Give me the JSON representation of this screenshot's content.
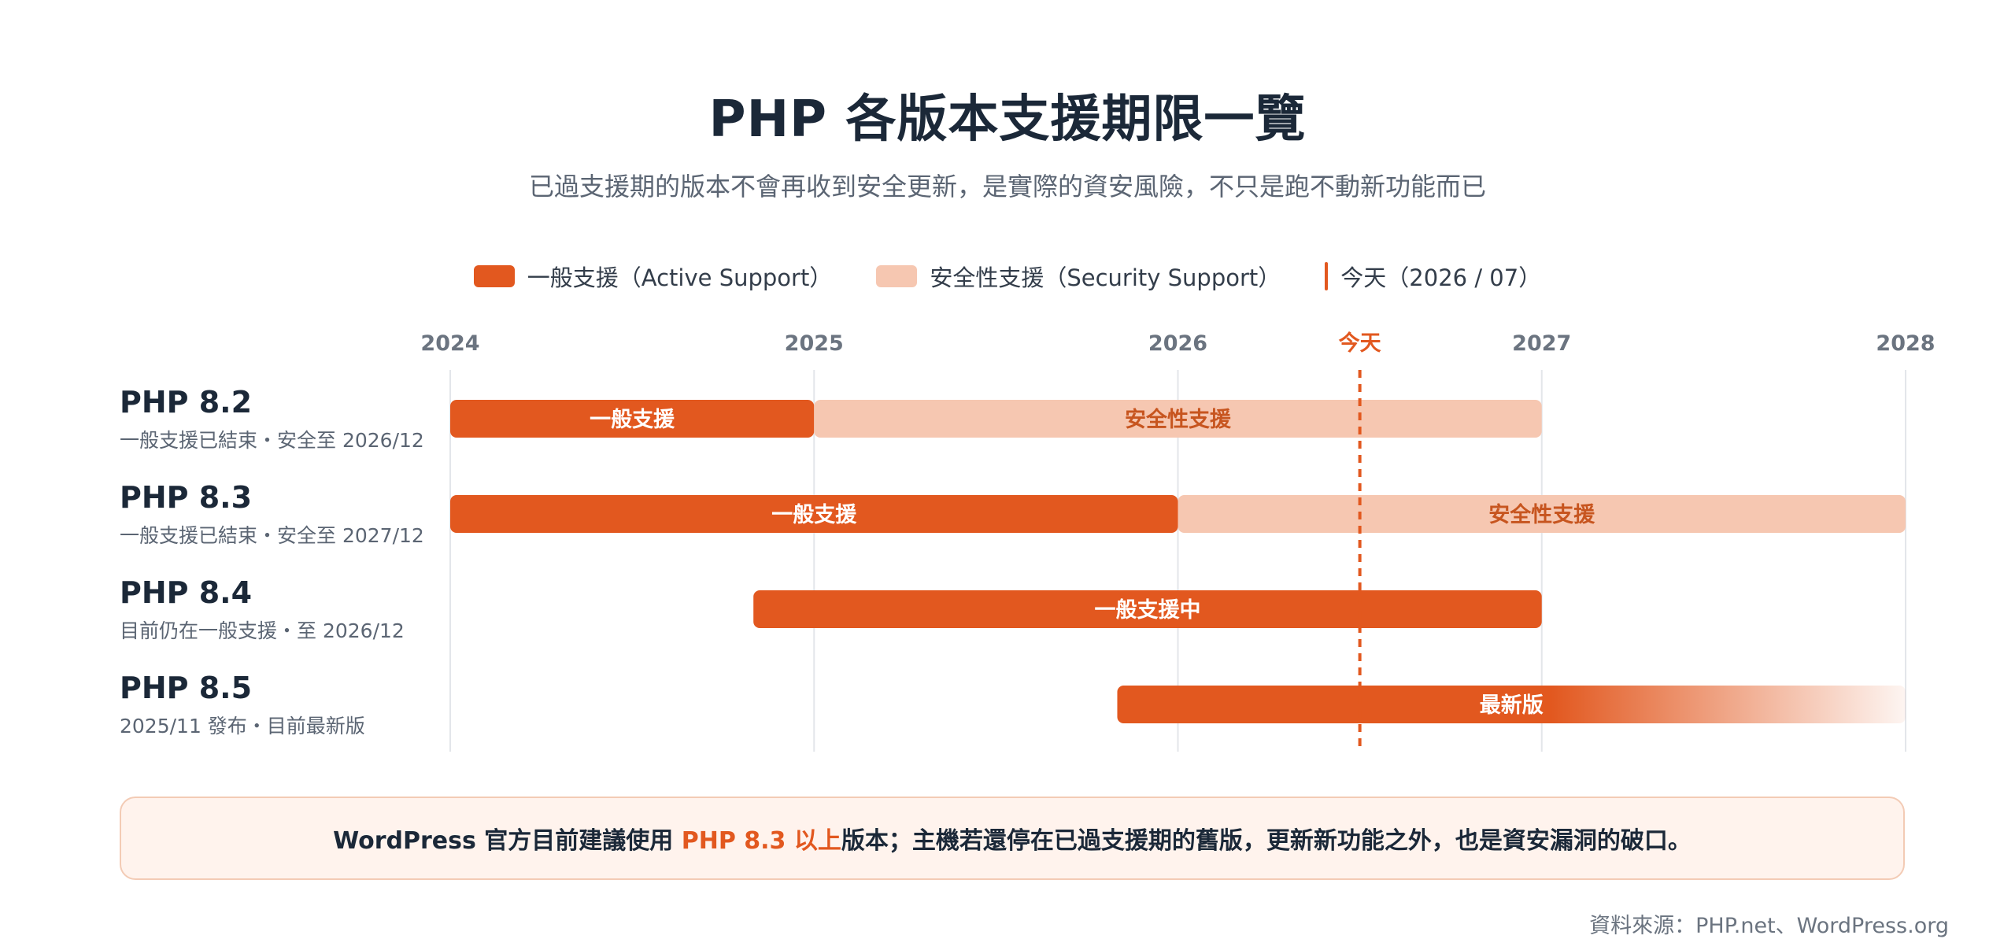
{
  "title": "PHP 各版本支援期限一覽",
  "subtitle": "已過支援期的版本不會再收到安全更新，是實際的資安風險，不只是跑不動新功能而已",
  "legend": {
    "active": "一般支援（Active Support）",
    "security": "安全性支援（Security Support）",
    "today": "今天（2026 / 07）"
  },
  "colors": {
    "active": "#e2581f",
    "security": "#f6c7b1",
    "security_text": "#c7551f",
    "today": "#e2581f",
    "grid": "#e3e6ea"
  },
  "chart_data": {
    "type": "gantt",
    "x_ticks": [
      "2024",
      "2025",
      "2026",
      "2027",
      "2028"
    ],
    "x_range": [
      "2024-01",
      "2028-01"
    ],
    "today": {
      "label": "今天",
      "date": "2026-07"
    },
    "rows": [
      {
        "name": "PHP 8.2",
        "note": "一般支援已結束・安全至 2026/12",
        "segments": [
          {
            "type": "active",
            "label": "一般支援",
            "start": "2024-01",
            "end": "2025-01"
          },
          {
            "type": "security",
            "label": "安全性支援",
            "start": "2025-01",
            "end": "2027-01"
          }
        ]
      },
      {
        "name": "PHP 8.3",
        "note": "一般支援已結束・安全至 2027/12",
        "segments": [
          {
            "type": "active",
            "label": "一般支援",
            "start": "2024-01",
            "end": "2026-01"
          },
          {
            "type": "security",
            "label": "安全性支援",
            "start": "2026-01",
            "end": "2028-01"
          }
        ]
      },
      {
        "name": "PHP 8.4",
        "note": "目前仍在一般支援・至 2026/12",
        "segments": [
          {
            "type": "active",
            "label": "一般支援中",
            "start": "2024-11",
            "end": "2027-01"
          }
        ]
      },
      {
        "name": "PHP 8.5",
        "note": "2025/11 發布・目前最新版",
        "segments": [
          {
            "type": "active-fade",
            "label": "最新版",
            "start": "2025-11",
            "end": "2028-01"
          }
        ]
      }
    ]
  },
  "note": {
    "before": "WordPress 官方目前建議使用 ",
    "highlight": "PHP 8.3 以上",
    "after": "版本；主機若還停在已過支援期的舊版，更新新功能之外，也是資安漏洞的破口。"
  },
  "source": "資料來源：PHP.net、WordPress.org"
}
